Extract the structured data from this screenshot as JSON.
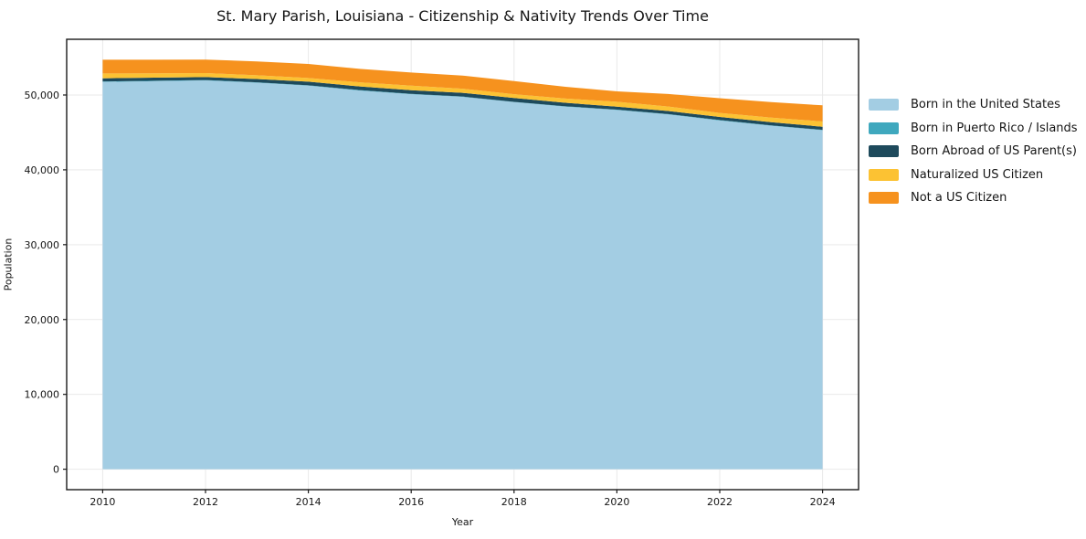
{
  "chart_data": {
    "type": "area",
    "stacked": true,
    "title": "St. Mary Parish, Louisiana - Citizenship & Nativity Trends Over Time",
    "xlabel": "Year",
    "ylabel": "Population",
    "x": [
      2010,
      2011,
      2012,
      2013,
      2014,
      2015,
      2016,
      2017,
      2018,
      2019,
      2020,
      2021,
      2022,
      2023,
      2024
    ],
    "series": [
      {
        "name": "Born in the United States",
        "color": "#a3cde3",
        "values": [
          51750,
          51850,
          51950,
          51650,
          51250,
          50600,
          50100,
          49750,
          49050,
          48450,
          48000,
          47400,
          46600,
          45900,
          45300
        ]
      },
      {
        "name": "Born in Puerto Rico / Islands",
        "color": "#3fa8be",
        "values": [
          60,
          55,
          50,
          45,
          50,
          55,
          50,
          45,
          40,
          45,
          50,
          55,
          50,
          45,
          40
        ]
      },
      {
        "name": "Born Abroad of US Parent(s)",
        "color": "#1e4a5c",
        "values": [
          420,
          410,
          400,
          440,
          480,
          485,
          490,
          500,
          520,
          460,
          400,
          410,
          420,
          420,
          420
        ]
      },
      {
        "name": "Naturalized US Citizen",
        "color": "#fcc233",
        "values": [
          650,
          590,
          530,
          510,
          490,
          550,
          610,
          550,
          490,
          570,
          650,
          590,
          540,
          620,
          700
        ]
      },
      {
        "name": "Not a US Citizen",
        "color": "#f6921e",
        "values": [
          1830,
          1810,
          1800,
          1840,
          1880,
          1810,
          1750,
          1750,
          1760,
          1570,
          1390,
          1680,
          1960,
          2060,
          2160
        ]
      }
    ],
    "xlim": [
      2009.3,
      2024.7
    ],
    "ylim": [
      -2735,
      57445
    ],
    "xtick_values": [
      2010,
      2012,
      2014,
      2016,
      2018,
      2020,
      2022,
      2024
    ],
    "xtick_labels": [
      "2010",
      "2012",
      "2014",
      "2016",
      "2018",
      "2020",
      "2022",
      "2024"
    ],
    "ytick_values": [
      0,
      10000,
      20000,
      30000,
      40000,
      50000
    ],
    "ytick_labels": [
      "0",
      "10,000",
      "20,000",
      "30,000",
      "40,000",
      "50,000"
    ],
    "grid": true,
    "legend_position": "right",
    "colors": {
      "background": "#ffffff",
      "grid": "#e9e9e9",
      "spine": "#1a1a1a",
      "text": "#151515"
    }
  }
}
